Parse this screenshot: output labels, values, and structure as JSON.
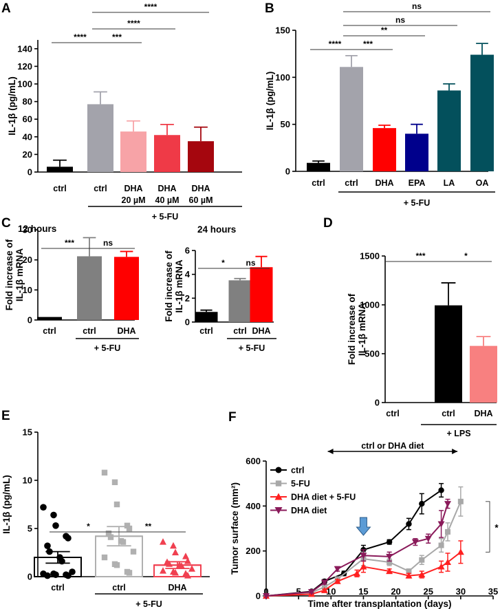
{
  "chart_data": [
    {
      "panel": "A",
      "type": "bar",
      "ylabel": "IL-1β (pg/mL)",
      "ylim": [
        0,
        150
      ],
      "yticks": [
        "0",
        "20",
        "40",
        "60",
        "80",
        "100",
        "120",
        "140"
      ],
      "ytick_values": [
        0,
        20,
        40,
        60,
        80,
        100,
        120,
        140
      ],
      "categories": [
        {
          "l1": "ctrl",
          "l2": ""
        },
        {
          "l1": "ctrl",
          "l2": ""
        },
        {
          "l1": "DHA",
          "l2": "20 µM"
        },
        {
          "l1": "DHA",
          "l2": "40 µM"
        },
        {
          "l1": "DHA",
          "l2": "60 µM"
        }
      ],
      "values": [
        6,
        77,
        46,
        42,
        35
      ],
      "errors": [
        7.5,
        14,
        12,
        12,
        16
      ],
      "colors": [
        "#000000",
        "#a3a3ab",
        "#f7a3a7",
        "#ef3a47",
        "#a5060e"
      ],
      "group_label": "+ 5-FU",
      "comparisons": [
        {
          "from": 0,
          "to": 1,
          "label": "****",
          "level": 0
        },
        {
          "from": 1,
          "to": 2,
          "label": "***",
          "level": 0
        },
        {
          "from": 1,
          "to": 3,
          "label": "****",
          "level": 1
        },
        {
          "from": 1,
          "to": 4,
          "label": "****",
          "level": 2
        }
      ]
    },
    {
      "panel": "B",
      "type": "bar",
      "ylabel": "IL-1β (pg/mL)",
      "ylim": [
        0,
        150
      ],
      "yticks": [
        "0",
        "50",
        "100",
        "150"
      ],
      "ytick_values": [
        0,
        50,
        100,
        150
      ],
      "categories": [
        {
          "l1": "ctrl",
          "l2": ""
        },
        {
          "l1": "ctrl",
          "l2": ""
        },
        {
          "l1": "DHA",
          "l2": ""
        },
        {
          "l1": "EPA",
          "l2": ""
        },
        {
          "l1": "LA",
          "l2": ""
        },
        {
          "l1": "OA",
          "l2": ""
        }
      ],
      "values": [
        9,
        111,
        46,
        40,
        86,
        124
      ],
      "errors": [
        2,
        12,
        3,
        10,
        7,
        12
      ],
      "colors": [
        "#000000",
        "#a3a3ab",
        "#ff0000",
        "#00008c",
        "#03505c",
        "#03505c"
      ],
      "group_label": "+ 5-FU",
      "comparisons": [
        {
          "from": 0,
          "to": 1,
          "label": "****",
          "level": 0
        },
        {
          "from": 1,
          "to": 2,
          "label": "***",
          "level": 0
        },
        {
          "from": 1,
          "to": 3,
          "label": "**",
          "level": 1
        },
        {
          "from": 1,
          "to": 4,
          "label": "ns",
          "level": 2
        },
        {
          "from": 1,
          "to": 5,
          "label": "ns",
          "level": 3
        }
      ]
    },
    {
      "panel": "C",
      "title": "12 hours",
      "type": "bar",
      "ylabel": "Fold increase of IL-1β mRNA",
      "ylim": [
        0,
        30
      ],
      "yticks": [
        "0",
        "10",
        "20",
        "30"
      ],
      "ytick_values": [
        0,
        10,
        20,
        30
      ],
      "categories": [
        {
          "l1": "ctrl",
          "l2": ""
        },
        {
          "l1": "ctrl",
          "l2": ""
        },
        {
          "l1": "DHA",
          "l2": ""
        }
      ],
      "values": [
        1,
        21.2,
        21
      ],
      "errors": [
        0,
        6.2,
        1.8
      ],
      "colors": [
        "#000000",
        "#808080",
        "#ff0000"
      ],
      "group_label": "+ 5-FU",
      "comparisons": [
        {
          "from": 0,
          "to": 1,
          "label": "***",
          "level": 0
        },
        {
          "from": 1,
          "to": 2,
          "label": "ns",
          "level": 0
        }
      ]
    },
    {
      "panel": "",
      "title": "24 hours",
      "type": "bar",
      "ylabel": "Fold increase of IL-1β mRNA",
      "ylim": [
        0,
        6
      ],
      "yticks": [
        "0",
        "2",
        "4",
        "6"
      ],
      "ytick_values": [
        0,
        2,
        4,
        6
      ],
      "categories": [
        {
          "l1": "ctrl",
          "l2": ""
        },
        {
          "l1": "ctrl",
          "l2": ""
        },
        {
          "l1": "DHA",
          "l2": ""
        }
      ],
      "values": [
        0.85,
        3.5,
        4.6
      ],
      "errors": [
        0.15,
        0.15,
        0.9
      ],
      "colors": [
        "#000000",
        "#808080",
        "#ff0000"
      ],
      "group_label": "+ 5-FU",
      "comparisons": [
        {
          "from": 0,
          "to": 1,
          "label": "*",
          "level": 0
        },
        {
          "from": 1,
          "to": 2,
          "label": "ns",
          "level": 0
        }
      ]
    },
    {
      "panel": "D",
      "type": "bar",
      "ylabel": "Fold increase of IL-1β mRNA",
      "ylim": [
        0,
        1500
      ],
      "yticks": [
        "0",
        "500",
        "1000",
        "1500"
      ],
      "ytick_values": [
        0,
        500,
        1000,
        1500
      ],
      "categories": [
        {
          "l1": "ctrl",
          "l2": ""
        },
        {
          "l1": "ctrl",
          "l2": ""
        },
        {
          "l1": "DHA",
          "l2": ""
        }
      ],
      "values": [
        0,
        995,
        580
      ],
      "errors": [
        0,
        230,
        95
      ],
      "colors": [
        "#000000",
        "#000000",
        "#f88080"
      ],
      "group_label": "+ LPS",
      "comparisons": [
        {
          "from": 0,
          "to": 1,
          "label": "***",
          "level": 0
        },
        {
          "from": 1,
          "to": 2,
          "label": "*",
          "level": 0
        }
      ]
    },
    {
      "panel": "E",
      "type": "bar",
      "ylabel": "IL-1β (pg/mL)",
      "ylim": [
        0,
        15
      ],
      "yticks": [
        "0",
        "5",
        "10",
        "15"
      ],
      "ytick_values": [
        0,
        5,
        10,
        15
      ],
      "categories": [
        {
          "l1": "ctrl",
          "l2": ""
        },
        {
          "l1": "ctrl",
          "l2": ""
        },
        {
          "l1": "DHA",
          "l2": ""
        }
      ],
      "values": [
        2.0,
        4.2,
        1.2
      ],
      "errors": [
        0.6,
        1.0,
        0.35
      ],
      "colors": [
        "#000000",
        "#b0b0b0",
        "#f04050"
      ],
      "markers": [
        "circle",
        "square",
        "triangle"
      ],
      "points": [
        [
          7.2,
          6.4,
          5.3,
          4.2,
          4.0,
          3.2,
          2.6,
          2.0,
          1.6,
          0.5,
          0.3,
          0.3,
          0.2,
          0.2,
          0.1,
          0.1
        ],
        [
          10.8,
          9.8,
          7.5,
          5.3,
          5.0,
          4.5,
          4.1,
          3.7,
          3.6,
          2.6,
          2.0,
          1.3,
          1.2,
          0.5,
          0.4
        ],
        [
          3.6,
          3.2,
          2.5,
          2.1,
          1.6,
          1.5,
          1.3,
          1.2,
          1.1,
          0.8,
          0.6,
          0.5,
          0.4,
          0.3,
          0.1
        ]
      ],
      "group_label": "+ 5-FU",
      "comparisons": [
        {
          "from": 0,
          "to": 1,
          "label": "*",
          "level": 0
        },
        {
          "from": 1,
          "to": 2,
          "label": "**",
          "level": 0
        }
      ]
    },
    {
      "panel": "F",
      "type": "line",
      "xlabel": "Time after transplantation (days)",
      "ylabel": "Tumor surface (mm²)",
      "xlim": [
        0,
        35
      ],
      "ylim": [
        0,
        600
      ],
      "xticks": [
        "0",
        "5",
        "10",
        "15",
        "20",
        "25",
        "30",
        "35"
      ],
      "xtick_values": [
        0,
        5,
        10,
        15,
        20,
        25,
        30,
        35
      ],
      "yticks": [
        "0",
        "200",
        "400",
        "600"
      ],
      "ytick_values": [
        0,
        200,
        400,
        600
      ],
      "diet_label": "ctrl  or DHA diet",
      "diet_range": [
        9.5,
        29.5
      ],
      "arrow_day": 15,
      "sig_label": "*",
      "series": [
        {
          "name": "ctrl",
          "color": "#000000",
          "marker": "circle",
          "x": [
            0,
            7,
            9,
            12,
            15,
            19,
            22,
            24,
            27
          ],
          "y": [
            0,
            20,
            65,
            100,
            205,
            240,
            320,
            410,
            470
          ],
          "err": [
            0,
            5,
            8,
            10,
            20,
            10,
            25,
            45,
            30
          ]
        },
        {
          "name": "5-FU",
          "color": "#a8a8a8",
          "marker": "square",
          "x": [
            0,
            7,
            9,
            11,
            15,
            19,
            22,
            24,
            27,
            28,
            30
          ],
          "y": [
            0,
            15,
            40,
            75,
            165,
            150,
            110,
            160,
            225,
            285,
            420
          ],
          "err": [
            0,
            5,
            8,
            10,
            30,
            15,
            10,
            20,
            30,
            40,
            65
          ]
        },
        {
          "name": "DHA diet + 5-FU",
          "color": "#ff2020",
          "marker": "triangle",
          "x": [
            0,
            7,
            9,
            11,
            14,
            15,
            19,
            22,
            24,
            27,
            28,
            30
          ],
          "y": [
            0,
            8,
            25,
            65,
            100,
            130,
            110,
            90,
            95,
            130,
            150,
            195
          ],
          "err": [
            0,
            3,
            5,
            8,
            15,
            25,
            10,
            10,
            15,
            25,
            40,
            50
          ]
        },
        {
          "name": "DHA diet",
          "color": "#8a1a5a",
          "marker": "triangle-down",
          "x": [
            0,
            7,
            9,
            11,
            15,
            19,
            23,
            25,
            27,
            28
          ],
          "y": [
            0,
            18,
            60,
            120,
            180,
            175,
            240,
            255,
            320,
            410
          ],
          "err": [
            0,
            5,
            8,
            10,
            25,
            20,
            15,
            20,
            60,
            20
          ]
        }
      ]
    }
  ]
}
